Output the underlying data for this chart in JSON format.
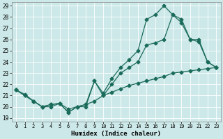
{
  "xlabel": "Humidex (Indice chaleur)",
  "background_color": "#cce8e8",
  "grid_color": "#aacccc",
  "line_color": "#1a6b5a",
  "xlim": [
    -0.5,
    23.5
  ],
  "ylim": [
    18.7,
    29.3
  ],
  "yticks": [
    19,
    20,
    21,
    22,
    23,
    24,
    25,
    26,
    27,
    28,
    29
  ],
  "xticks": [
    0,
    1,
    2,
    3,
    4,
    5,
    6,
    7,
    8,
    9,
    10,
    11,
    12,
    13,
    14,
    15,
    16,
    17,
    18,
    19,
    20,
    21,
    22,
    23
  ],
  "series1_x": [
    0,
    1,
    2,
    3,
    4,
    5,
    6,
    7,
    8,
    9,
    10,
    11,
    12,
    13,
    14,
    15,
    16,
    17,
    18,
    19,
    20,
    21,
    22,
    23
  ],
  "series1_y": [
    21.5,
    21.0,
    20.5,
    20.0,
    20.2,
    20.3,
    19.5,
    20.0,
    20.2,
    22.3,
    21.0,
    22.0,
    23.0,
    23.5,
    24.0,
    25.5,
    25.7,
    26.0,
    28.2,
    27.8,
    26.0,
    26.0,
    24.0,
    23.5
  ],
  "series2_x": [
    0,
    1,
    2,
    3,
    4,
    5,
    6,
    7,
    8,
    9,
    10,
    11,
    12,
    13,
    14,
    15,
    16,
    17,
    18,
    19,
    20,
    21,
    22,
    23
  ],
  "series2_y": [
    21.5,
    21.0,
    20.5,
    20.0,
    20.0,
    20.3,
    19.5,
    20.0,
    20.0,
    22.3,
    21.2,
    22.5,
    23.5,
    24.2,
    25.0,
    27.8,
    28.2,
    29.0,
    28.2,
    27.5,
    26.0,
    25.8,
    24.0,
    23.5
  ],
  "series3_x": [
    0,
    1,
    2,
    3,
    4,
    5,
    6,
    7,
    8,
    9,
    10,
    11,
    12,
    13,
    14,
    15,
    16,
    17,
    18,
    19,
    20,
    21,
    22,
    23
  ],
  "series3_y": [
    21.5,
    21.1,
    20.5,
    20.0,
    20.2,
    20.3,
    19.8,
    20.0,
    20.2,
    20.5,
    21.0,
    21.3,
    21.6,
    21.9,
    22.1,
    22.3,
    22.5,
    22.7,
    23.0,
    23.1,
    23.2,
    23.3,
    23.4,
    23.5
  ],
  "markersize": 2.5,
  "linewidth": 0.9
}
